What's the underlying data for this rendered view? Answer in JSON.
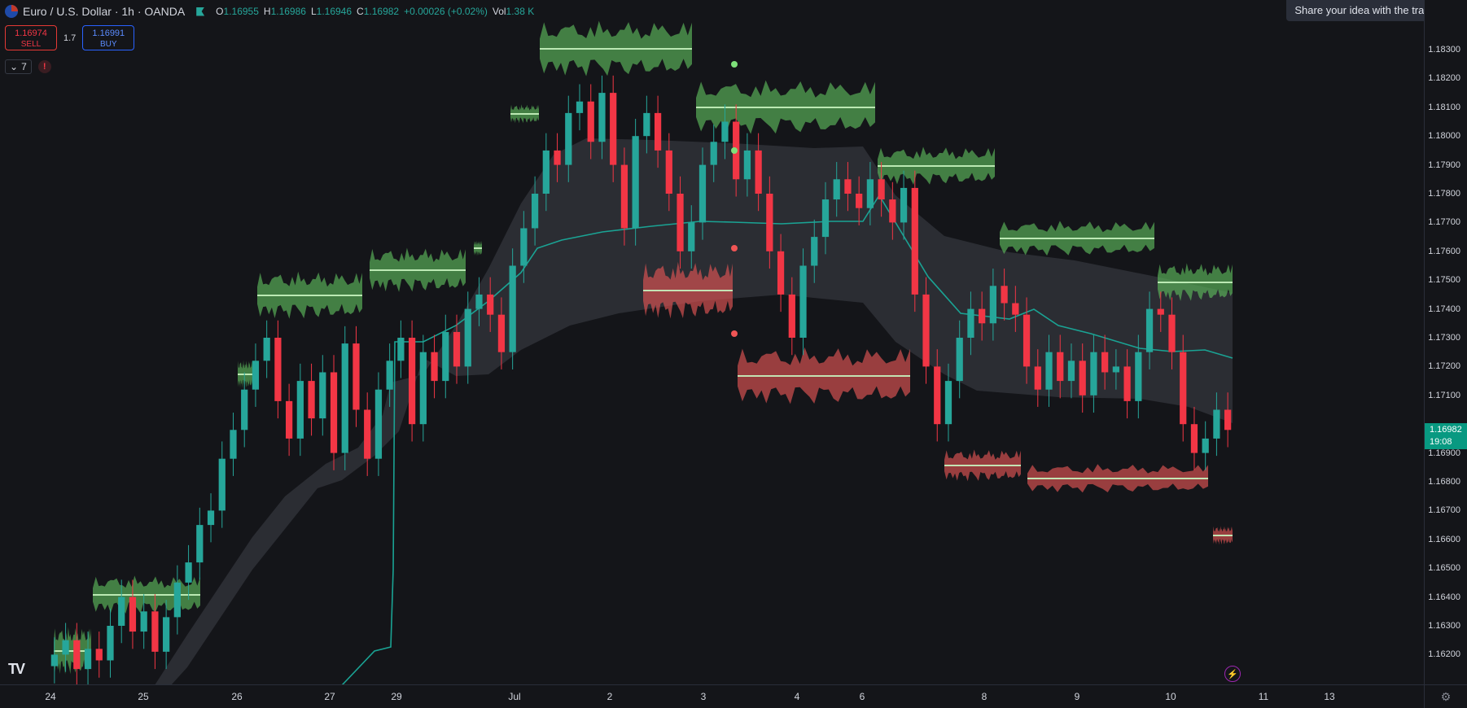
{
  "header": {
    "symbol": "Euro / U.S. Dollar · 1h · OANDA",
    "ohlc": [
      {
        "k": "O",
        "v": "1.16955"
      },
      {
        "k": "H",
        "v": "1.16986"
      },
      {
        "k": "L",
        "v": "1.16946"
      },
      {
        "k": "C",
        "v": "1.16982"
      }
    ],
    "change": "+0.00026 (+0.02%)",
    "vol_label": "Vol",
    "vol_value": "1.38 K"
  },
  "trade": {
    "sell_price": "1.16974",
    "sell_label": "SELL",
    "spread": "1.7",
    "buy_price": "1.16991",
    "buy_label": "BUY"
  },
  "indicators": {
    "count": "7"
  },
  "tooltip": "Share your idea with the trade com",
  "last_price": {
    "value": "1.16982",
    "countdown": "19:08"
  },
  "colors": {
    "bg": "#141519",
    "up": "#26a69a",
    "down": "#f23645",
    "profile_up": "#5cb85c",
    "profile_down": "#e05555",
    "band": "#2e3036",
    "ma": "#1aa394"
  },
  "chart_data": {
    "type": "candlestick",
    "price_axis": [
      "1.18300",
      "1.18200",
      "1.18100",
      "1.18000",
      "1.17900",
      "1.17800",
      "1.17700",
      "1.17600",
      "1.17500",
      "1.17400",
      "1.17300",
      "1.17200",
      "1.17100",
      "1.16900",
      "1.16800",
      "1.16700",
      "1.16600",
      "1.16500",
      "1.16400",
      "1.16300",
      "1.16200"
    ],
    "time_axis": [
      "24",
      "25",
      "26",
      "27",
      "29",
      "Jul",
      "2",
      "3",
      "4",
      "6",
      "8",
      "9",
      "10",
      "11",
      "13"
    ],
    "ylim": [
      1.1615,
      1.1851
    ],
    "closes": [
      1.162,
      1.1625,
      1.1615,
      1.1622,
      1.1618,
      1.163,
      1.164,
      1.1628,
      1.1635,
      1.1621,
      1.1633,
      1.1645,
      1.1652,
      1.1665,
      1.167,
      1.1688,
      1.1698,
      1.1712,
      1.1722,
      1.173,
      1.1708,
      1.1695,
      1.1715,
      1.1702,
      1.1718,
      1.169,
      1.1728,
      1.1705,
      1.1688,
      1.1712,
      1.1722,
      1.173,
      1.17,
      1.1725,
      1.1715,
      1.1732,
      1.172,
      1.174,
      1.1745,
      1.1738,
      1.1725,
      1.1755,
      1.1768,
      1.178,
      1.1795,
      1.179,
      1.1808,
      1.1812,
      1.1798,
      1.1815,
      1.179,
      1.1768,
      1.18,
      1.1808,
      1.1795,
      1.178,
      1.176,
      1.177,
      1.179,
      1.1798,
      1.1805,
      1.1785,
      1.1795,
      1.178,
      1.176,
      1.1745,
      1.173,
      1.1755,
      1.1765,
      1.1778,
      1.1785,
      1.178,
      1.1775,
      1.1785,
      1.1778,
      1.177,
      1.1782,
      1.1745,
      1.172,
      1.17,
      1.1715,
      1.173,
      1.174,
      1.1735,
      1.1748,
      1.1742,
      1.1738,
      1.172,
      1.1712,
      1.1725,
      1.1715,
      1.1722,
      1.171,
      1.1725,
      1.1718,
      1.172,
      1.1708,
      1.1725,
      1.174,
      1.1738,
      1.1725,
      1.17,
      1.169,
      1.1695,
      1.1705,
      1.1698
    ]
  }
}
